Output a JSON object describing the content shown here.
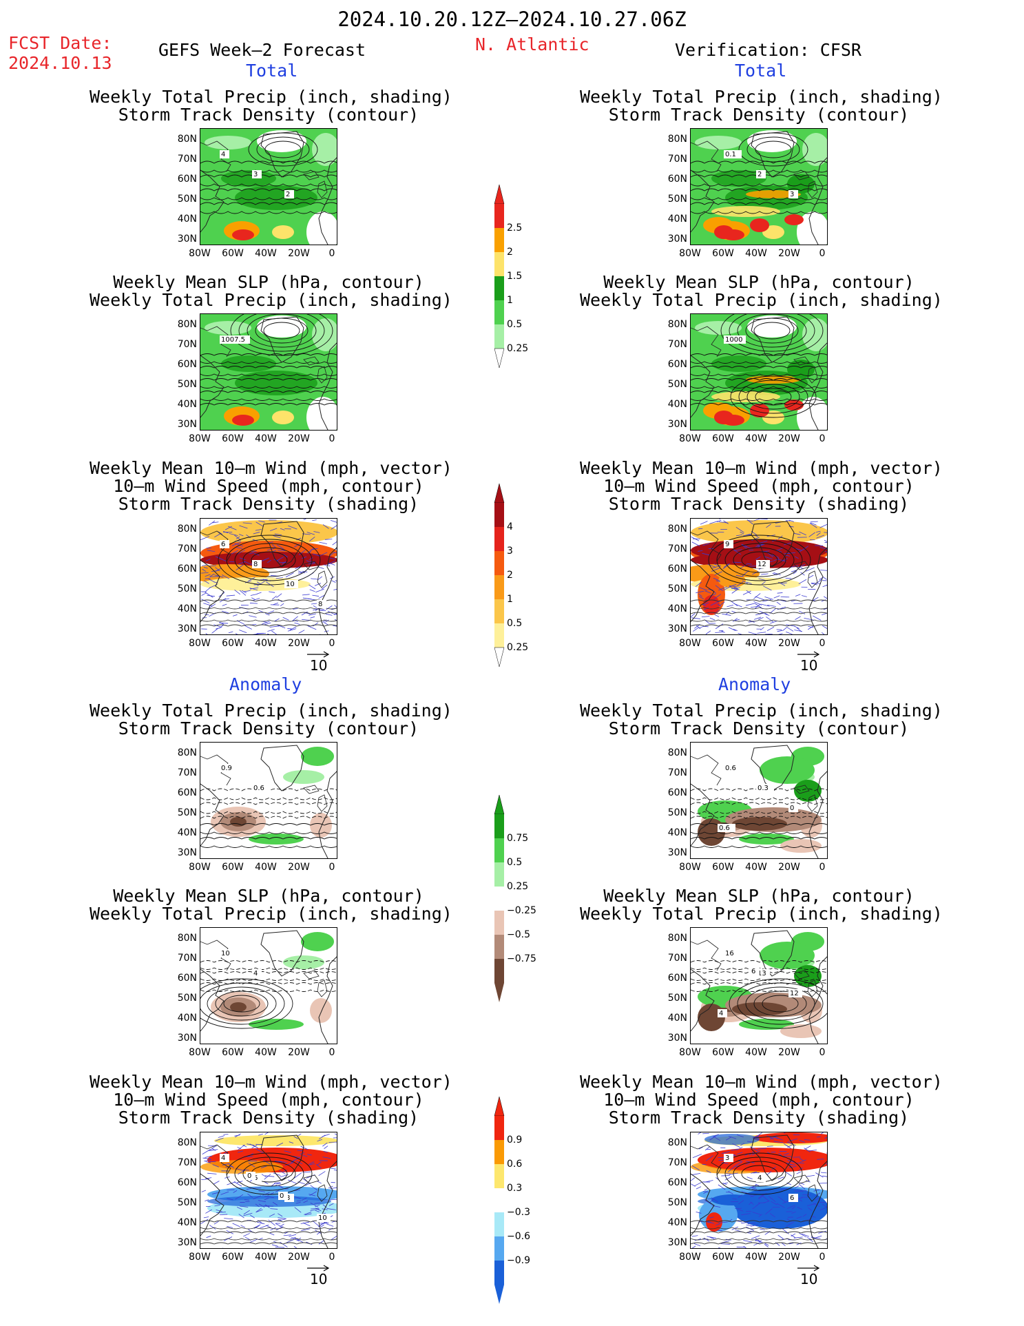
{
  "header": {
    "title": "2024.10.20.12Z–2024.10.27.06Z",
    "fcst_label": "FCST Date:",
    "fcst_date": "2024.10.13",
    "left_model": "GEFS Week–2 Forecast",
    "region": "N. Atlantic",
    "verification": "Verification: CFSR",
    "section_total": "Total",
    "section_anomaly": "Anomaly"
  },
  "panel_titles": {
    "precip_track": [
      "Weekly Total Precip (inch, shading)",
      "Storm Track Density (contour)"
    ],
    "slp_precip": [
      "Weekly Mean SLP (hPa, contour)",
      "Weekly Total Precip (inch, shading)"
    ],
    "wind_track": [
      "Weekly Mean 10–m Wind (mph, vector)",
      "10–m Wind Speed (mph, contour)",
      "Storm Track Density (shading)"
    ]
  },
  "axes": {
    "lat_labels": [
      "80N",
      "70N",
      "60N",
      "50N",
      "40N",
      "30N"
    ],
    "lon_labels": [
      "80W",
      "60W",
      "40W",
      "20W",
      "0"
    ]
  },
  "vector_ref": "10",
  "colorbars": {
    "precip_total": {
      "labels": [
        "2.5",
        "2",
        "1.5",
        "1",
        "0.5",
        "0.25"
      ],
      "colors": [
        "#e8261e",
        "#f9a000",
        "#fde36a",
        "#1a9e1a",
        "#4fd14f",
        "#a6efa6"
      ]
    },
    "track_total": {
      "labels": [
        "4",
        "3",
        "2",
        "1",
        "0.5",
        "0.25"
      ],
      "colors": [
        "#a50f15",
        "#e5231c",
        "#f55a0f",
        "#f99a18",
        "#fbc64a",
        "#fef09a"
      ]
    },
    "precip_anom": {
      "labels": [
        "0.75",
        "0.5",
        "0.25",
        "−0.25",
        "−0.5",
        "−0.75"
      ],
      "colors": [
        "#1a9e1a",
        "#4fd14f",
        "#a6efa6",
        "#ffffff",
        "#e9c5b5",
        "#b28a78",
        "#6e4634"
      ]
    },
    "track_anom": {
      "labels": [
        "0.9",
        "0.6",
        "0.3",
        "−0.3",
        "−0.6",
        "−0.9"
      ],
      "colors": [
        "#f0260f",
        "#fa9a05",
        "#fde76e",
        "#ffffff",
        "#a8e9f7",
        "#56a8f0",
        "#1a60d8"
      ]
    }
  },
  "contour_labels": {
    "f_track_total": [
      "4",
      "3",
      "2"
    ],
    "v_track_total": [
      "0.1",
      "2",
      "3"
    ],
    "f_slp_total": [
      "1007.5"
    ],
    "v_slp_total": [
      "1000"
    ],
    "f_wind_total": [
      "6",
      "8",
      "10",
      "8"
    ],
    "v_wind_total": [
      "9",
      "12"
    ],
    "f_track_anom": [
      "0.9",
      "0.6"
    ],
    "v_track_anom": [
      "0.6",
      "0.3",
      "0",
      "0.6"
    ],
    "f_slp_anom": [
      "10",
      "4"
    ],
    "v_slp_anom": [
      "16",
      "13",
      "12",
      "4",
      "6"
    ],
    "f_wind_anom": [
      "4",
      "6",
      "8",
      "10",
      "0",
      "0"
    ],
    "v_wind_anom": [
      "3",
      "4",
      "6"
    ]
  }
}
